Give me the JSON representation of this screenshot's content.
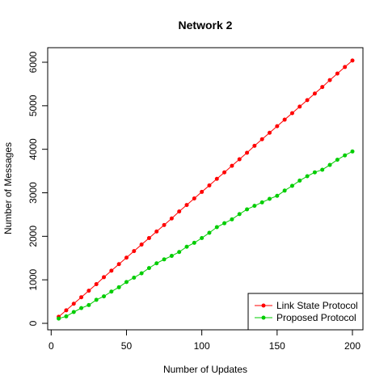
{
  "chart_data": {
    "type": "line",
    "title": "Network 2",
    "xlabel": "Number of Updates",
    "ylabel": "Number of Messages",
    "xlim": [
      0,
      200
    ],
    "ylim": [
      0,
      6000
    ],
    "xticks": [
      0,
      50,
      100,
      150,
      200
    ],
    "yticks": [
      0,
      1000,
      2000,
      3000,
      4000,
      5000,
      6000
    ],
    "grid": false,
    "legend_position": "bottom-right",
    "x": [
      5,
      10,
      15,
      20,
      25,
      30,
      35,
      40,
      45,
      50,
      55,
      60,
      65,
      70,
      75,
      80,
      85,
      90,
      95,
      100,
      105,
      110,
      115,
      120,
      125,
      130,
      135,
      140,
      145,
      150,
      155,
      160,
      165,
      170,
      175,
      180,
      185,
      190,
      195,
      200
    ],
    "series": [
      {
        "name": "Link State Protocol",
        "color": "#ff0000",
        "values": [
          150,
          300,
          450,
          600,
          750,
          900,
          1060,
          1210,
          1360,
          1510,
          1660,
          1810,
          1960,
          2110,
          2260,
          2410,
          2570,
          2720,
          2870,
          3020,
          3170,
          3320,
          3470,
          3620,
          3770,
          3920,
          4080,
          4230,
          4380,
          4530,
          4680,
          4830,
          4980,
          5130,
          5280,
          5430,
          5590,
          5740,
          5890,
          6040
        ]
      },
      {
        "name": "Proposed Protocol",
        "color": "#00cd00",
        "values": [
          110,
          160,
          260,
          350,
          420,
          540,
          620,
          730,
          830,
          950,
          1050,
          1150,
          1270,
          1380,
          1470,
          1550,
          1640,
          1760,
          1850,
          1960,
          2080,
          2210,
          2300,
          2390,
          2510,
          2620,
          2700,
          2780,
          2860,
          2930,
          3050,
          3160,
          3280,
          3380,
          3470,
          3530,
          3640,
          3760,
          3860,
          3950
        ]
      }
    ]
  }
}
